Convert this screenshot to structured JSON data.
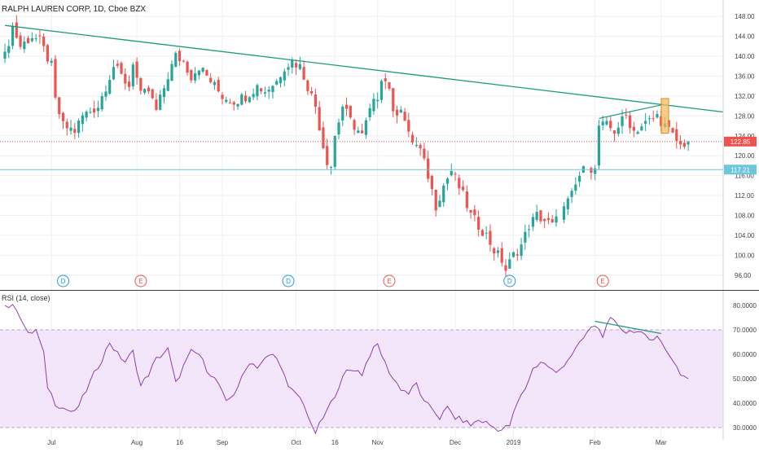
{
  "chart_data": [
    {
      "type": "candlestick",
      "title": "RALPH LAUREN CORP, 1D, Cboe BZX",
      "ylim": [
        94,
        150
      ],
      "y_ticks": [
        96,
        100,
        104,
        108,
        112,
        116,
        120,
        124,
        128,
        132,
        136,
        140,
        144,
        148
      ],
      "y_tick_labels": [
        "96.00",
        "100.00",
        "104.00",
        "108.00",
        "112.00",
        "116.00",
        "120.00",
        "124.00",
        "128.00",
        "132.00",
        "136.00",
        "140.00",
        "144.00",
        "148.00"
      ],
      "x_tick_labels": [
        {
          "label": "Jul",
          "day": 12
        },
        {
          "label": "Aug",
          "day": 34
        },
        {
          "label": "16",
          "day": 45
        },
        {
          "label": "Sep",
          "day": 56
        },
        {
          "label": "Oct",
          "day": 75
        },
        {
          "label": "16",
          "day": 85
        },
        {
          "label": "Nov",
          "day": 96
        },
        {
          "label": "Dec",
          "day": 116
        },
        {
          "label": "2019",
          "day": 131
        },
        {
          "label": "Feb",
          "day": 152
        },
        {
          "label": "Mar",
          "day": 169
        }
      ],
      "days_total": 185,
      "price_label": "122.85",
      "price_value": 122.85,
      "hline_label": "117.21",
      "hline_value": 117.21,
      "trendline": {
        "from": [
          0,
          146.2
        ],
        "to": [
          185,
          128.8
        ]
      },
      "wedge_line": {
        "from": [
          153,
          127.5
        ],
        "to": [
          169,
          130.2
        ]
      },
      "highlight_bar": {
        "x": 170,
        "from": 124.5,
        "to": 131.5
      },
      "events": [
        {
          "label": "D",
          "day": 15
        },
        {
          "label": "E",
          "day": 35
        },
        {
          "label": "D",
          "day": 73
        },
        {
          "label": "E",
          "day": 99
        },
        {
          "label": "D",
          "day": 130
        },
        {
          "label": "E",
          "day": 154
        }
      ],
      "anchors": [
        [
          0,
          140
        ],
        [
          2,
          146
        ],
        [
          4,
          142
        ],
        [
          7,
          144
        ],
        [
          9,
          143
        ],
        [
          12,
          138
        ],
        [
          13,
          131
        ],
        [
          15,
          126
        ],
        [
          18,
          125
        ],
        [
          20,
          128
        ],
        [
          24,
          130
        ],
        [
          26,
          134
        ],
        [
          28,
          138
        ],
        [
          32,
          134
        ],
        [
          33,
          139
        ],
        [
          35,
          132
        ],
        [
          37,
          133
        ],
        [
          39,
          129
        ],
        [
          42,
          136
        ],
        [
          44,
          140
        ],
        [
          46,
          139
        ],
        [
          48,
          136
        ],
        [
          50,
          138
        ],
        [
          53,
          135
        ],
        [
          56,
          132
        ],
        [
          59,
          131
        ],
        [
          62,
          132
        ],
        [
          65,
          134
        ],
        [
          67,
          133
        ],
        [
          70,
          135
        ],
        [
          72,
          138
        ],
        [
          74,
          139
        ],
        [
          76,
          138
        ],
        [
          78,
          134
        ],
        [
          80,
          130
        ],
        [
          82,
          122
        ],
        [
          83,
          119
        ],
        [
          84,
          118
        ],
        [
          85,
          124
        ],
        [
          87,
          130
        ],
        [
          89,
          127
        ],
        [
          92,
          124
        ],
        [
          94,
          129
        ],
        [
          96,
          132
        ],
        [
          97,
          136
        ],
        [
          99,
          134
        ],
        [
          100,
          128
        ],
        [
          102,
          130
        ],
        [
          104,
          124
        ],
        [
          107,
          121
        ],
        [
          109,
          116
        ],
        [
          111,
          110
        ],
        [
          113,
          114
        ],
        [
          115,
          117
        ],
        [
          118,
          112
        ],
        [
          120,
          108
        ],
        [
          122,
          106
        ],
        [
          124,
          104
        ],
        [
          126,
          101
        ],
        [
          128,
          99
        ],
        [
          129,
          97
        ],
        [
          131,
          100
        ],
        [
          133,
          102
        ],
        [
          135,
          106
        ],
        [
          137,
          108
        ],
        [
          139,
          107
        ],
        [
          141,
          106
        ],
        [
          143,
          108
        ],
        [
          146,
          112
        ],
        [
          148,
          116
        ],
        [
          150,
          118
        ],
        [
          152,
          117
        ],
        [
          153,
          126
        ],
        [
          155,
          126
        ],
        [
          157,
          125
        ],
        [
          160,
          128
        ],
        [
          162,
          125
        ],
        [
          164,
          126
        ],
        [
          166,
          127
        ],
        [
          168,
          128
        ],
        [
          170,
          126
        ],
        [
          172,
          124
        ],
        [
          174,
          122
        ],
        [
          176,
          123
        ]
      ]
    },
    {
      "type": "line",
      "title": "RSI (14, close)",
      "ylim": [
        25,
        85
      ],
      "y_ticks": [
        30,
        40,
        50,
        60,
        70,
        80
      ],
      "y_tick_labels": [
        "30.0000",
        "40.0000",
        "50.0000",
        "60.0000",
        "70.0000",
        "80.0000"
      ],
      "band": [
        30,
        70
      ],
      "divergence_line": {
        "from": [
          152,
          73.5
        ],
        "to": [
          169,
          68.5
        ]
      },
      "anchors": [
        [
          0,
          80
        ],
        [
          3,
          79
        ],
        [
          6,
          68
        ],
        [
          8,
          70
        ],
        [
          10,
          60
        ],
        [
          11,
          47
        ],
        [
          13,
          40
        ],
        [
          15,
          38
        ],
        [
          18,
          36
        ],
        [
          20,
          42
        ],
        [
          23,
          52
        ],
        [
          25,
          58
        ],
        [
          27,
          65
        ],
        [
          29,
          60
        ],
        [
          31,
          57
        ],
        [
          33,
          61
        ],
        [
          35,
          47
        ],
        [
          37,
          52
        ],
        [
          39,
          58
        ],
        [
          42,
          62
        ],
        [
          44,
          48
        ],
        [
          46,
          55
        ],
        [
          48,
          61
        ],
        [
          50,
          60
        ],
        [
          52,
          54
        ],
        [
          55,
          48
        ],
        [
          57,
          40
        ],
        [
          59,
          44
        ],
        [
          61,
          50
        ],
        [
          63,
          57
        ],
        [
          65,
          55
        ],
        [
          67,
          58
        ],
        [
          69,
          60
        ],
        [
          71,
          56
        ],
        [
          73,
          46
        ],
        [
          75,
          44
        ],
        [
          77,
          40
        ],
        [
          79,
          30
        ],
        [
          80,
          28
        ],
        [
          82,
          34
        ],
        [
          84,
          40
        ],
        [
          86,
          47
        ],
        [
          88,
          53
        ],
        [
          90,
          54
        ],
        [
          92,
          52
        ],
        [
          94,
          60
        ],
        [
          96,
          64
        ],
        [
          98,
          56
        ],
        [
          100,
          50
        ],
        [
          102,
          46
        ],
        [
          104,
          44
        ],
        [
          106,
          48
        ],
        [
          108,
          40
        ],
        [
          110,
          38
        ],
        [
          112,
          34
        ],
        [
          114,
          38
        ],
        [
          116,
          34
        ],
        [
          118,
          33
        ],
        [
          120,
          31
        ],
        [
          122,
          33
        ],
        [
          124,
          32
        ],
        [
          126,
          30
        ],
        [
          128,
          29
        ],
        [
          130,
          31
        ],
        [
          132,
          40
        ],
        [
          134,
          46
        ],
        [
          136,
          54
        ],
        [
          138,
          57
        ],
        [
          140,
          55
        ],
        [
          142,
          52
        ],
        [
          144,
          56
        ],
        [
          146,
          60
        ],
        [
          148,
          64
        ],
        [
          150,
          69
        ],
        [
          152,
          72
        ],
        [
          154,
          68
        ],
        [
          156,
          74
        ],
        [
          158,
          72
        ],
        [
          160,
          69
        ],
        [
          162,
          70
        ],
        [
          164,
          68
        ],
        [
          166,
          66
        ],
        [
          168,
          68
        ],
        [
          170,
          62
        ],
        [
          172,
          58
        ],
        [
          174,
          52
        ],
        [
          176,
          50
        ]
      ]
    }
  ]
}
